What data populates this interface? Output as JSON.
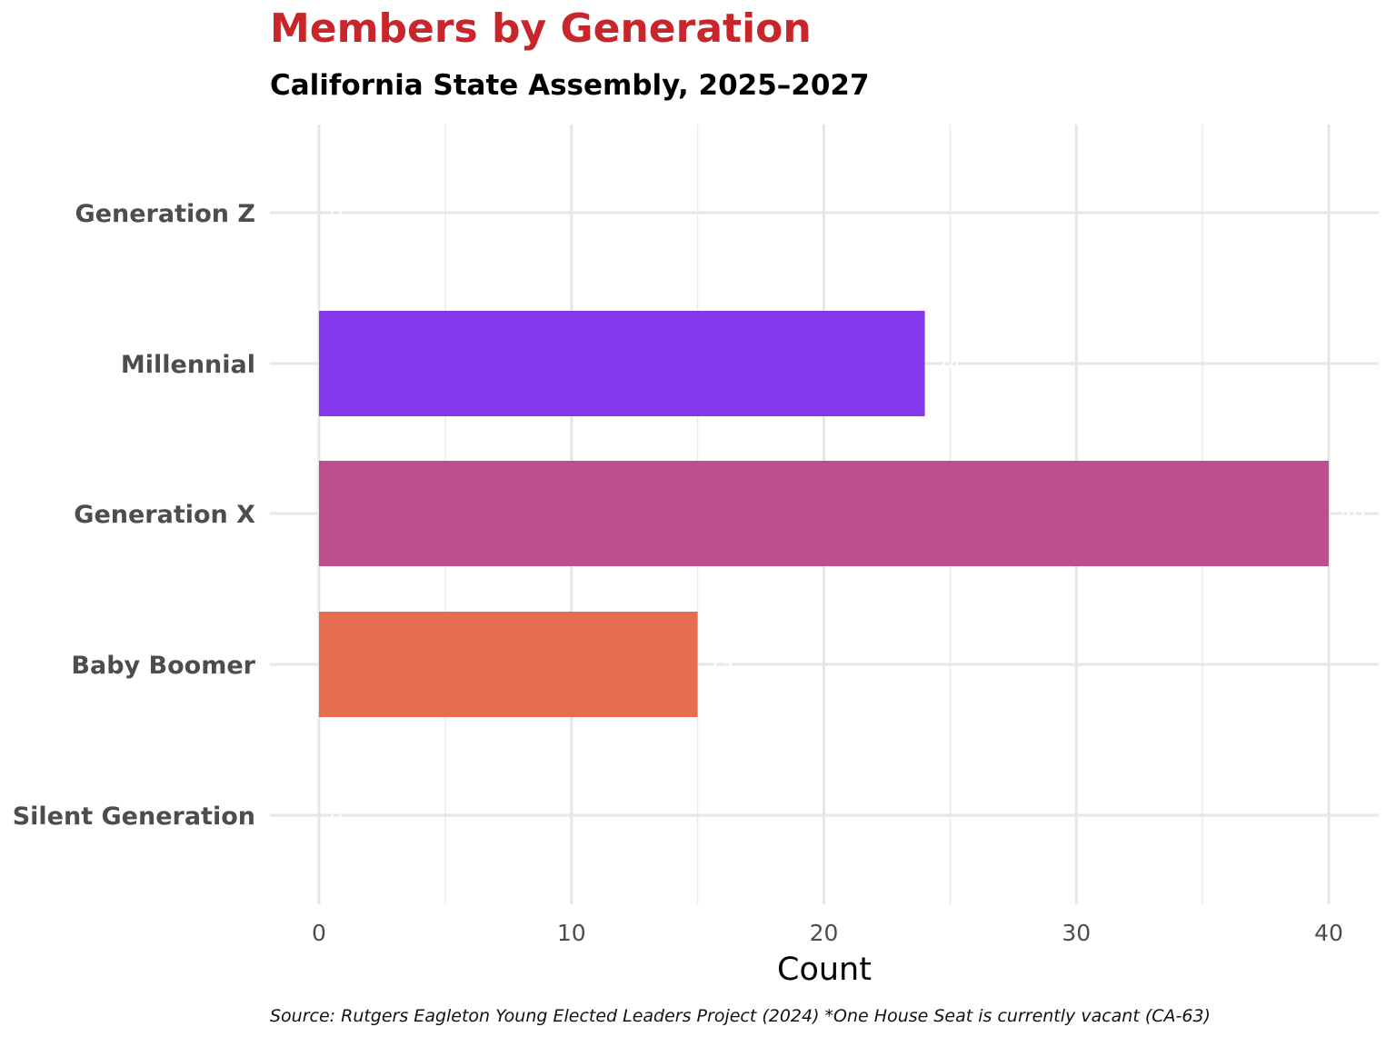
{
  "title": "Members by Generation",
  "subtitle": "California State Assembly, 2025–2027",
  "caption": "Source: Rutgers Eagleton Young Elected Leaders Project (2024) *One House Seat is currently vacant (CA-63)",
  "chart_data": {
    "type": "bar",
    "orientation": "horizontal",
    "categories": [
      "Generation Z",
      "Millennial",
      "Generation X",
      "Baby Boomer",
      "Silent Generation"
    ],
    "values": [
      0,
      24,
      40,
      15,
      0
    ],
    "data_labels": [
      "0",
      "24",
      "40",
      "15",
      "0"
    ],
    "colors": [
      "#6a00a8",
      "#8338ec",
      "#bd4f8e",
      "#e56e51",
      "#f0b030"
    ],
    "title": "Members by Generation",
    "xlabel": "Count",
    "ylabel": "",
    "xlim": [
      -2,
      42
    ],
    "xticks": [
      0,
      10,
      20,
      30,
      40
    ],
    "grid": true,
    "legend": "none"
  }
}
